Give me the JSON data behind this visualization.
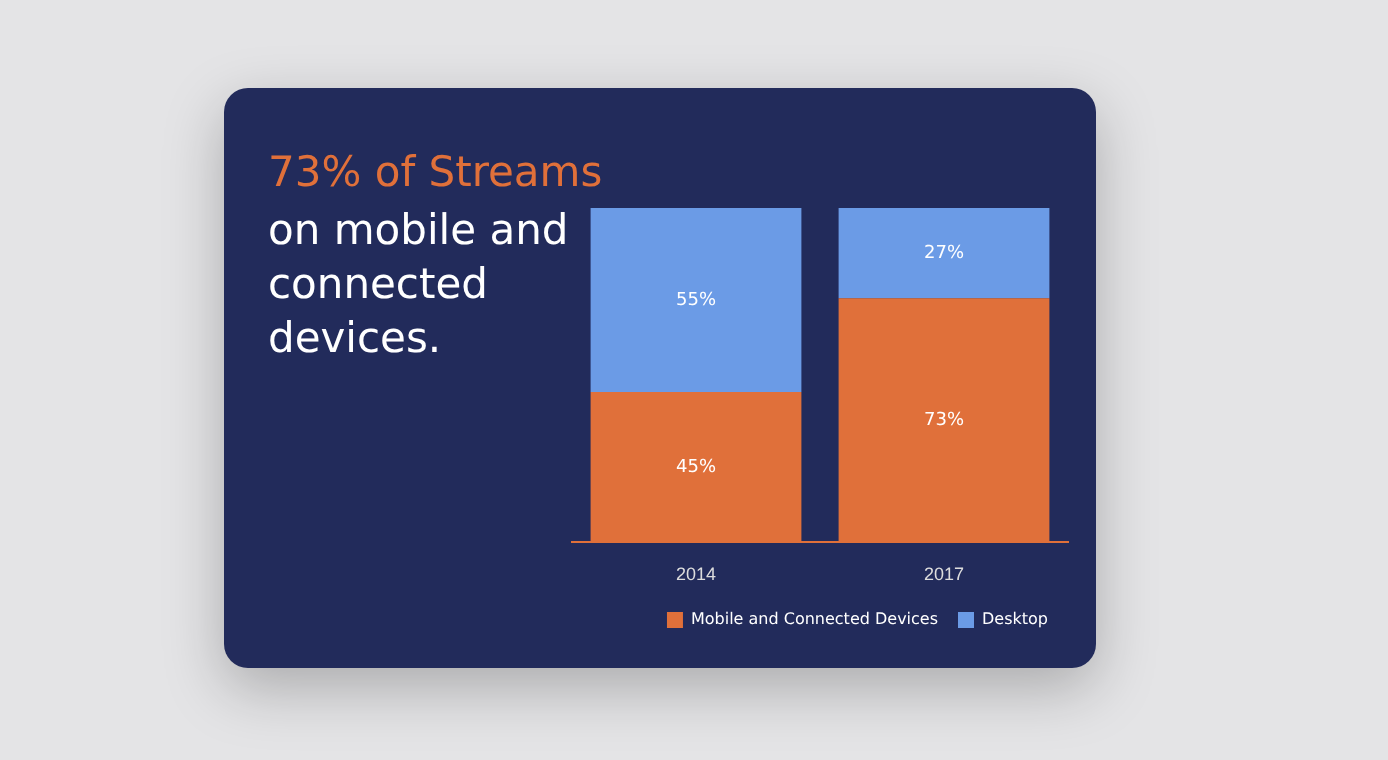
{
  "chart_data": {
    "type": "bar",
    "title": "73% of Streams",
    "subtitle": "on mobile and connected devices.",
    "categories": [
      "2014",
      "2017"
    ],
    "stacked": true,
    "tick_labels": "x",
    "legend": "bottom",
    "grid": false,
    "series": [
      {
        "name": "Mobile and Connected Devices",
        "color": "#e0703a",
        "values": [
          45,
          73
        ],
        "value_labels": [
          "45%",
          "73%"
        ]
      },
      {
        "name": "Desktop",
        "color": "#6b9be6",
        "values": [
          55,
          27
        ],
        "value_labels": [
          "55%",
          "27%"
        ]
      }
    ]
  }
}
